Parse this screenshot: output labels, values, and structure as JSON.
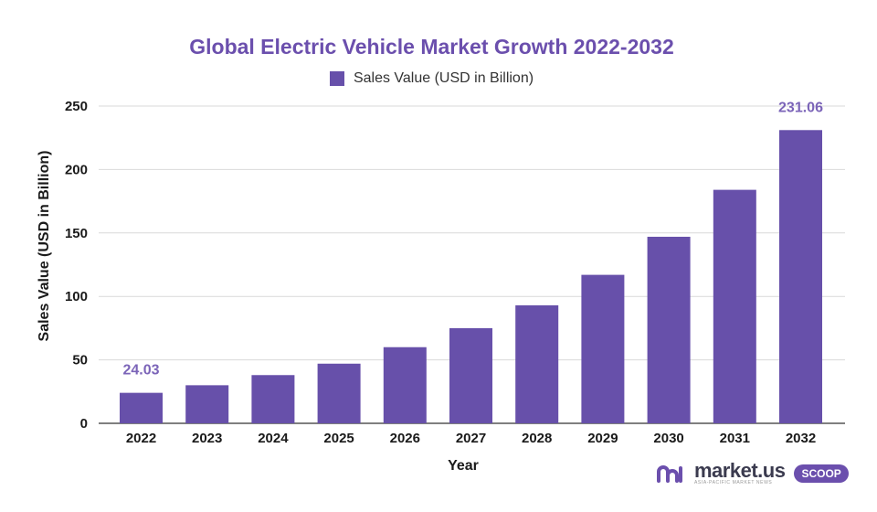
{
  "chart_data": {
    "type": "bar",
    "title": "Global Electric Vehicle Market Growth 2022-2032",
    "xlabel": "Year",
    "ylabel": "Sales Value (USD in Billion)",
    "categories": [
      "2022",
      "2023",
      "2024",
      "2025",
      "2026",
      "2027",
      "2028",
      "2029",
      "2030",
      "2031",
      "2032"
    ],
    "series": [
      {
        "name": "Sales Value (USD in Billion)",
        "values": [
          24.03,
          30.0,
          38.0,
          47.0,
          60.0,
          75.0,
          93.0,
          117.0,
          147.0,
          184.0,
          231.06
        ]
      }
    ],
    "ylim": [
      0,
      250
    ],
    "yticks": [
      0,
      50,
      100,
      150,
      200,
      250
    ],
    "data_labels": [
      {
        "index": 0,
        "text": "24.03"
      },
      {
        "index": 10,
        "text": "231.06"
      }
    ],
    "grid": true,
    "legend_position": "top-center",
    "colors": {
      "bar": "#6750aa",
      "title": "#6b4fad",
      "label": "#7b64b8",
      "grid": "#d9d9d9"
    }
  },
  "logo": {
    "brand": "market.us",
    "tagline": "ASIA-PACIFIC MARKET NEWS",
    "badge": "SCOOP"
  }
}
